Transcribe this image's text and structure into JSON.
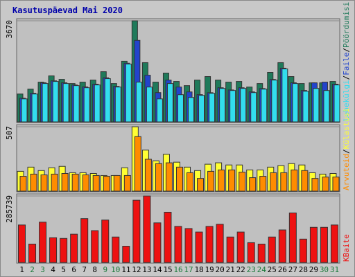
{
  "chart_data": {
    "type": "bar",
    "title": "Kasutuspäevad Mai 2020",
    "categories": [
      "1",
      "2",
      "3",
      "4",
      "5",
      "6",
      "7",
      "8",
      "9",
      "10",
      "11",
      "12",
      "13",
      "14",
      "15",
      "16",
      "17",
      "18",
      "19",
      "20",
      "21",
      "22",
      "23",
      "24",
      "25",
      "26",
      "27",
      "28",
      "29",
      "30",
      "31"
    ],
    "label_colors": [
      "#000000",
      "#1a7a3a",
      "#1a7a3a",
      "#000000",
      "#000000",
      "#000000",
      "#000000",
      "#000000",
      "#1a7a3a",
      "#1a7a3a",
      "#000000",
      "#000000",
      "#000000",
      "#000000",
      "#000000",
      "#1a7a3a",
      "#1a7a3a",
      "#000000",
      "#000000",
      "#000000",
      "#000000",
      "#000000",
      "#1a7a3a",
      "#1a7a3a",
      "#000000",
      "#000000",
      "#000000",
      "#000000",
      "#000000",
      "#1a7a3a",
      "#1a7a3a"
    ],
    "legend_separator": "/",
    "panels": [
      {
        "ylim": [
          0,
          3670
        ],
        "yticks": [
          3670
        ],
        "series": [
          {
            "name": "Pöördumisi",
            "color": "#1f7a5a",
            "values": [
              1012,
              1190,
              1443,
              1670,
              1543,
              1392,
              1443,
              1518,
              1822,
              1392,
              2202,
              3670,
              2150,
              1443,
              1771,
              1468,
              1316,
              1518,
              1645,
              1518,
              1443,
              1468,
              1265,
              1392,
              1797,
              2150,
              1645,
              1392,
              1417,
              1417,
              1468
            ]
          },
          {
            "name": "Faile",
            "color": "#2244cc",
            "values": [
              860,
              1040,
              1420,
              1490,
              1420,
              1340,
              1270,
              1370,
              1600,
              1290,
              2130,
              2960,
              1695,
              1063,
              1518,
              1265,
              1088,
              990,
              1060,
              1240,
              1160,
              1240,
              1090,
              1210,
              1540,
              1950,
              1420,
              1140,
              1417,
              1443,
              1370
            ]
          },
          {
            "name": "Lehekülgi",
            "color": "#33ddee",
            "values": [
              835,
              1012,
              1392,
              1468,
              1392,
              1316,
              1240,
              1341,
              1569,
              1265,
              2100,
              1443,
              1265,
              835,
              1392,
              987,
              886,
              961,
              1037,
              1214,
              1139,
              1214,
              1063,
              1189,
              1518,
              1923,
              1392,
              1113,
              1214,
              1139,
              1341
            ]
          }
        ]
      },
      {
        "ylim": [
          0,
          507
        ],
        "yticks": [
          507
        ],
        "series": [
          {
            "name": "Külastusi",
            "color": "#ffff33",
            "values": [
              156,
              189,
              162,
              184,
              195,
              145,
              145,
              139,
              123,
              123,
              184,
              507,
              323,
              239,
              290,
              228,
              189,
              162,
              212,
              223,
              206,
              206,
              167,
              167,
              189,
              201,
              217,
              206,
              145,
              134,
              139
            ]
          },
          {
            "name": "Arvuteid",
            "color": "#ff8c00",
            "values": [
              117,
              134,
              128,
              134,
              139,
              134,
              128,
              123,
              117,
              123,
              123,
              429,
              251,
              217,
              223,
              189,
              145,
              100,
              156,
              167,
              167,
              150,
              106,
              117,
              145,
              145,
              167,
              162,
              100,
              111,
              111
            ]
          }
        ]
      },
      {
        "ylim": [
          0,
          285739
        ],
        "yticks": [
          285739
        ],
        "series": [
          {
            "name": "KBaite",
            "color": "#ee1111",
            "values": [
              161120,
              79040,
              173280,
              106400,
              103360,
              121600,
              188480,
              136800,
              182400,
              109440,
              69920,
              267520,
              285739,
              170240,
              215840,
              155040,
              145920,
              130720,
              155040,
              164160,
              109440,
              130720,
              85120,
              79040,
              109440,
              139840,
              212800,
              100320,
              151040,
              151040,
              161120
            ]
          }
        ]
      }
    ]
  }
}
